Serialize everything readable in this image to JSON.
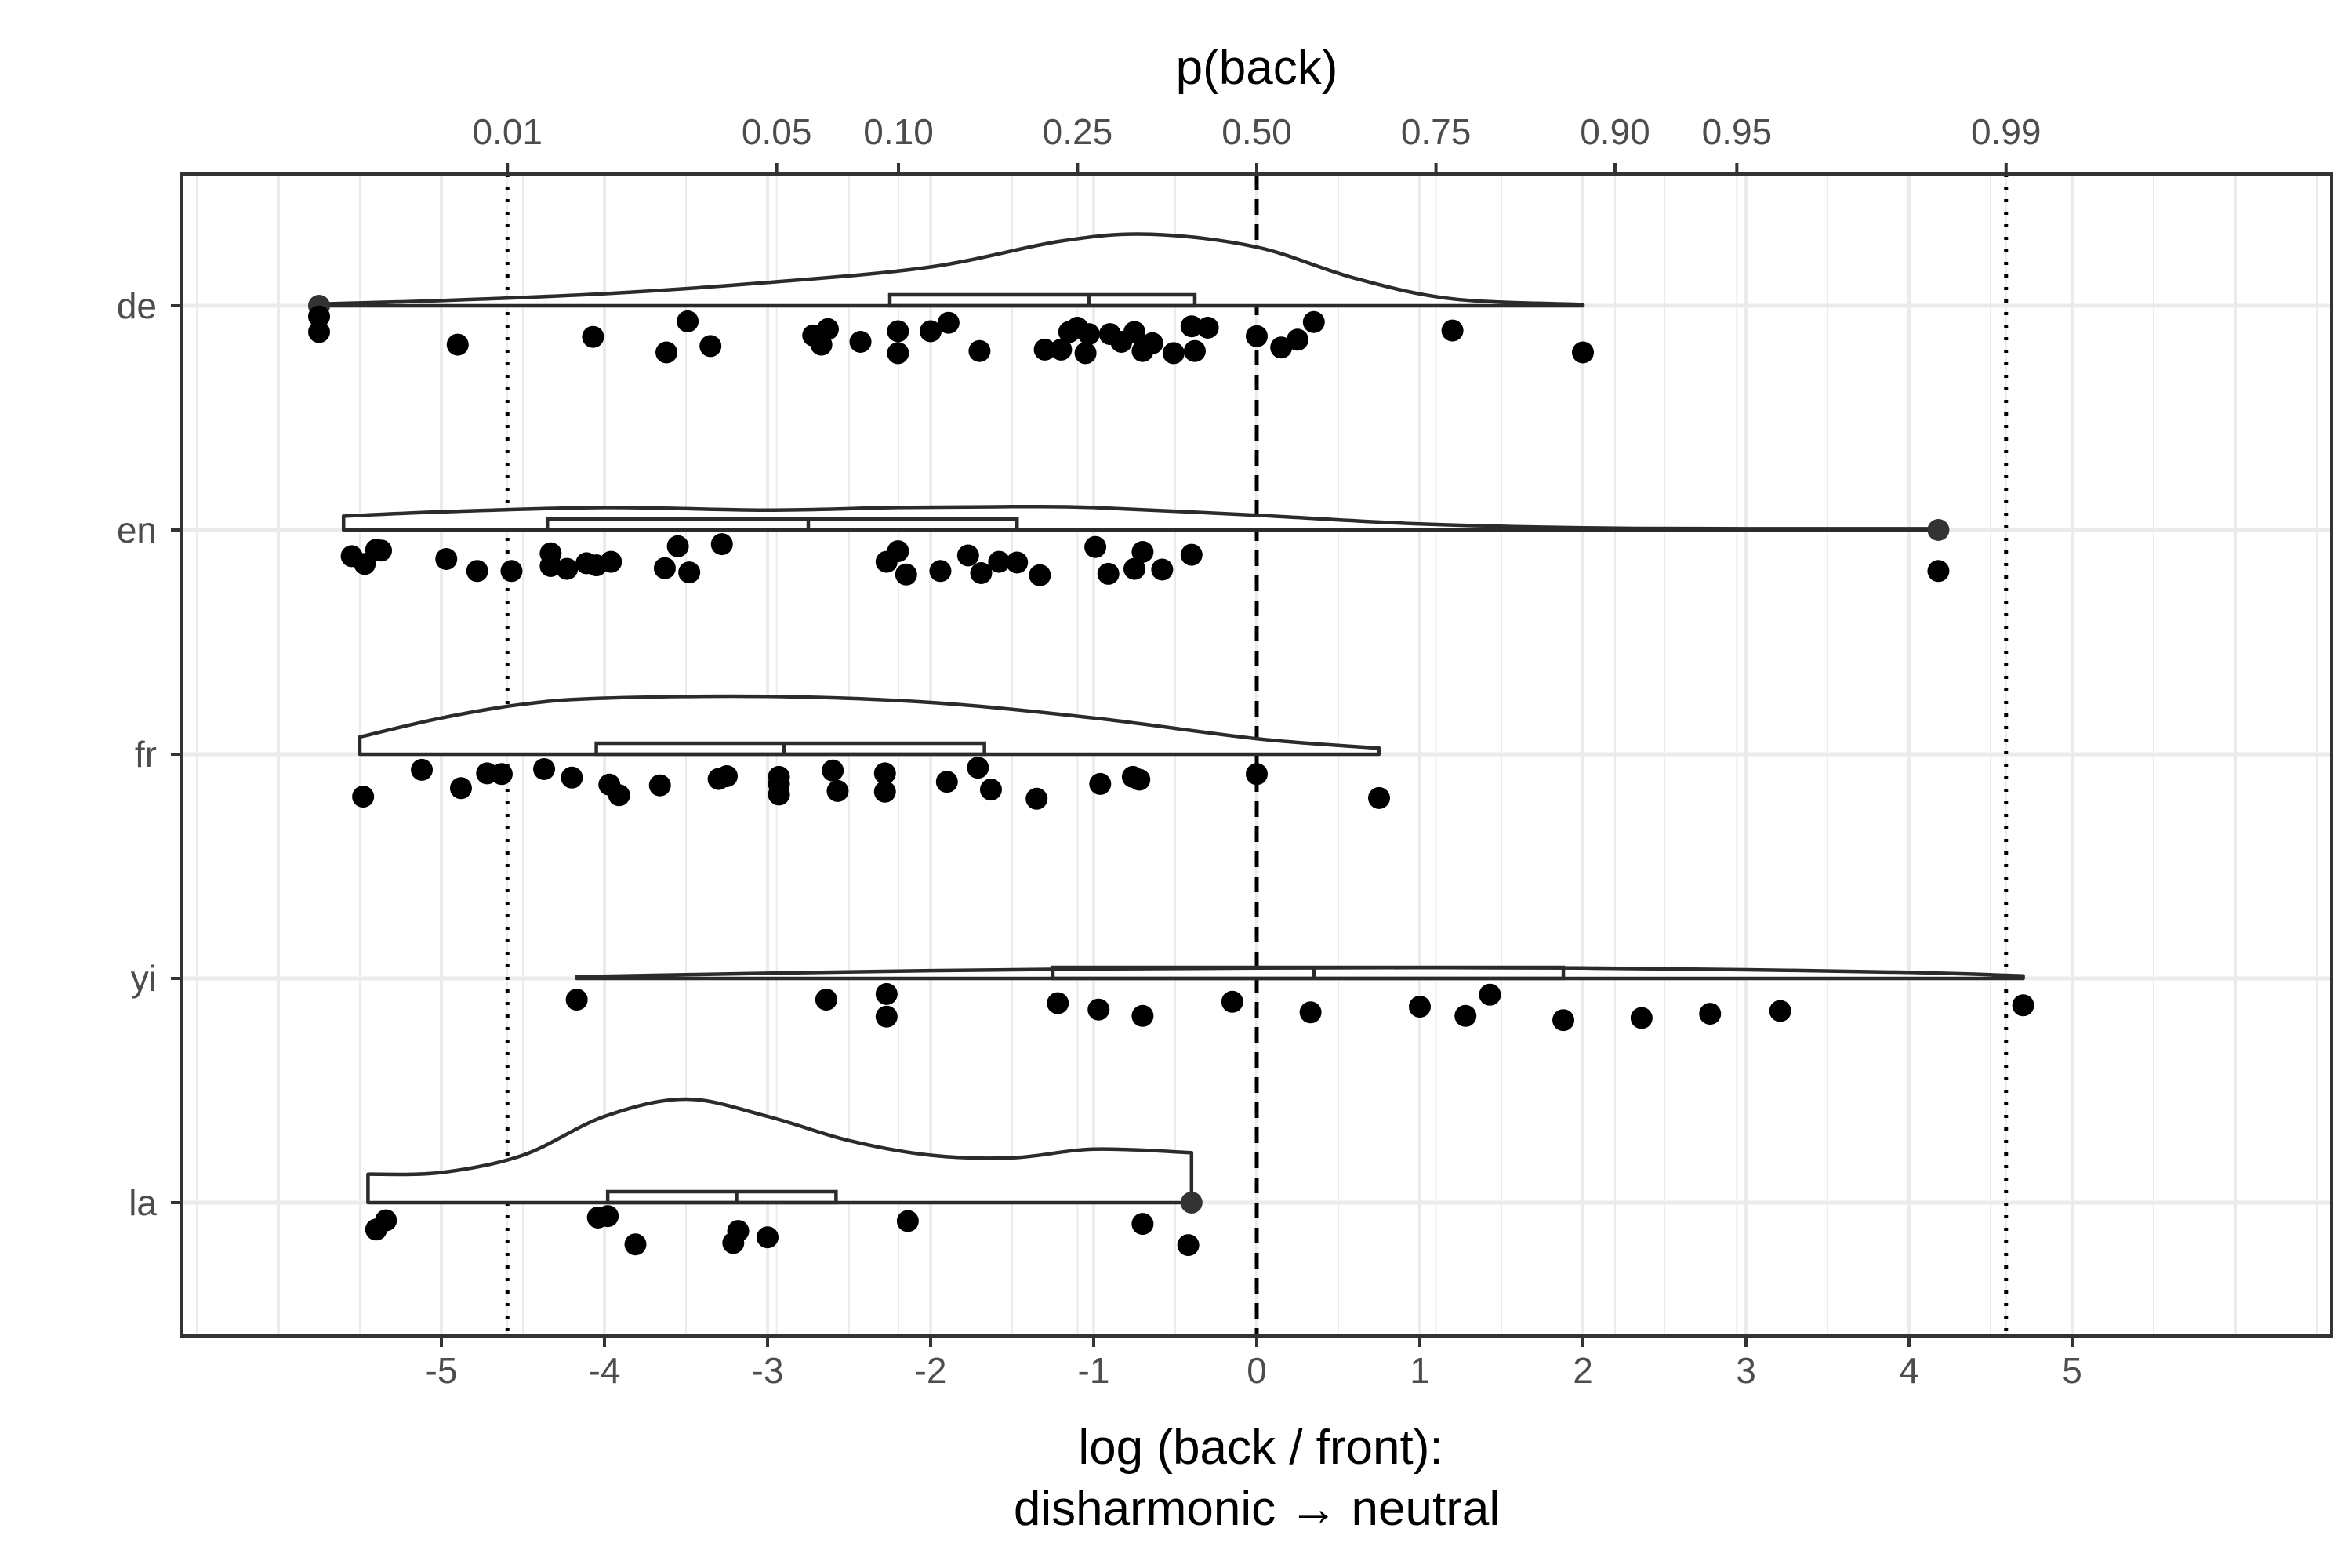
{
  "chart_data": {
    "type": "raincloud",
    "xlabel_line1": "log (back / front):",
    "xlabel_line2": "disharmonic → neutral",
    "top_axis_title": "p(back)",
    "xlim": [
      -6.6,
      6.6
    ],
    "x_ticks": [
      {
        "value": -5,
        "label": "-5"
      },
      {
        "value": -4,
        "label": "-4"
      },
      {
        "value": -3,
        "label": "-3"
      },
      {
        "value": -2,
        "label": "-2"
      },
      {
        "value": -1,
        "label": "-1"
      },
      {
        "value": 0,
        "label": "0"
      },
      {
        "value": 1,
        "label": "1"
      },
      {
        "value": 2,
        "label": "2"
      },
      {
        "value": 3,
        "label": "3"
      },
      {
        "value": 4,
        "label": "4"
      },
      {
        "value": 5,
        "label": "5"
      }
    ],
    "top_ticks": [
      {
        "value": -4.595,
        "label": "0.01"
      },
      {
        "value": -2.944,
        "label": "0.05"
      },
      {
        "value": -2.197,
        "label": "0.10"
      },
      {
        "value": -1.099,
        "label": "0.25"
      },
      {
        "value": 0,
        "label": "0.50"
      },
      {
        "value": 1.099,
        "label": "0.75"
      },
      {
        "value": 2.197,
        "label": "0.90"
      },
      {
        "value": 2.944,
        "label": "0.95"
      },
      {
        "value": 4.595,
        "label": "0.99"
      }
    ],
    "reference_lines": [
      {
        "value": -4.595,
        "style": "dotted"
      },
      {
        "value": 0,
        "style": "dashed"
      },
      {
        "value": 4.595,
        "style": "dotted"
      }
    ],
    "grid": true,
    "groups": [
      {
        "name": "de",
        "box": {
          "q1": -2.25,
          "median": -1.03,
          "q3": -0.38
        },
        "outliers": [
          -5.75
        ],
        "density": [
          [
            -5.75,
            0.02
          ],
          [
            -5,
            0.06
          ],
          [
            -4,
            0.14
          ],
          [
            -3,
            0.27
          ],
          [
            -2,
            0.45
          ],
          [
            -1.2,
            0.75
          ],
          [
            -0.65,
            0.83
          ],
          [
            0,
            0.68
          ],
          [
            0.6,
            0.32
          ],
          [
            1.2,
            0.08
          ],
          [
            2,
            0.015
          ]
        ],
        "points": [
          [
            -5.75,
            0.04
          ],
          [
            -5.75,
            0.26
          ],
          [
            -4.9,
            0.44
          ],
          [
            -4.07,
            0.33
          ],
          [
            -3.62,
            0.55
          ],
          [
            -3.49,
            0.11
          ],
          [
            -3.35,
            0.46
          ],
          [
            -2.72,
            0.31
          ],
          [
            -2.67,
            0.44
          ],
          [
            -2.63,
            0.22
          ],
          [
            -2.43,
            0.4
          ],
          [
            -2.2,
            0.25
          ],
          [
            -2.2,
            0.56
          ],
          [
            -2.0,
            0.25
          ],
          [
            -1.89,
            0.13
          ],
          [
            -1.7,
            0.53
          ],
          [
            -1.3,
            0.51
          ],
          [
            -1.2,
            0.51
          ],
          [
            -1.15,
            0.26
          ],
          [
            -1.1,
            0.2
          ],
          [
            -1.05,
            0.56
          ],
          [
            -1.03,
            0.29
          ],
          [
            -0.9,
            0.29
          ],
          [
            -0.83,
            0.4
          ],
          [
            -0.75,
            0.26
          ],
          [
            -0.7,
            0.53
          ],
          [
            -0.64,
            0.42
          ],
          [
            -0.51,
            0.56
          ],
          [
            -0.4,
            0.18
          ],
          [
            -0.38,
            0.53
          ],
          [
            -0.3,
            0.2
          ],
          [
            0,
            0.32
          ],
          [
            0.15,
            0.48
          ],
          [
            0.25,
            0.37
          ],
          [
            0.35,
            0.12
          ],
          [
            1.2,
            0.24
          ],
          [
            2.0,
            0.55
          ]
        ]
      },
      {
        "name": "en",
        "box": {
          "q1": -4.35,
          "median": -2.75,
          "q3": -1.47
        },
        "outliers": [
          4.18
        ],
        "density": [
          [
            -5.6,
            0.16
          ],
          [
            -5,
            0.21
          ],
          [
            -4,
            0.26
          ],
          [
            -3,
            0.23
          ],
          [
            -2.2,
            0.26
          ],
          [
            -1.5,
            0.27
          ],
          [
            -1,
            0.26
          ],
          [
            0,
            0.17
          ],
          [
            1,
            0.07
          ],
          [
            2,
            0.025
          ],
          [
            3,
            0.015
          ],
          [
            4.18,
            0.015
          ]
        ],
        "points": [
          [
            -5.55,
            0.26
          ],
          [
            -5.47,
            0.37
          ],
          [
            -5.4,
            0.17
          ],
          [
            -5.37,
            0.18
          ],
          [
            -4.97,
            0.3
          ],
          [
            -4.78,
            0.47
          ],
          [
            -4.57,
            0.47
          ],
          [
            -4.33,
            0.4
          ],
          [
            -4.33,
            0.22
          ],
          [
            -4.23,
            0.44
          ],
          [
            -4.11,
            0.36
          ],
          [
            -4.05,
            0.39
          ],
          [
            -3.96,
            0.34
          ],
          [
            -3.63,
            0.43
          ],
          [
            -3.55,
            0.12
          ],
          [
            -3.48,
            0.49
          ],
          [
            -3.28,
            0.09
          ],
          [
            -2.27,
            0.34
          ],
          [
            -2.2,
            0.19
          ],
          [
            -2.15,
            0.52
          ],
          [
            -1.94,
            0.47
          ],
          [
            -1.77,
            0.25
          ],
          [
            -1.69,
            0.5
          ],
          [
            -1.58,
            0.34
          ],
          [
            -1.47,
            0.35
          ],
          [
            -1.33,
            0.53
          ],
          [
            -0.99,
            0.13
          ],
          [
            -0.91,
            0.51
          ],
          [
            -0.75,
            0.44
          ],
          [
            -0.7,
            0.2
          ],
          [
            -0.58,
            0.45
          ],
          [
            -0.4,
            0.24
          ],
          [
            4.18,
            0.47
          ]
        ]
      },
      {
        "name": "fr",
        "box": {
          "q1": -4.05,
          "median": -2.9,
          "q3": -1.67
        },
        "outliers": [],
        "density": [
          [
            -5.5,
            0.2
          ],
          [
            -5,
            0.42
          ],
          [
            -4.5,
            0.58
          ],
          [
            -4,
            0.65
          ],
          [
            -3,
            0.67
          ],
          [
            -2,
            0.6
          ],
          [
            -1,
            0.42
          ],
          [
            0,
            0.18
          ],
          [
            0.75,
            0.07
          ]
        ],
        "points": [
          [
            -5.48,
            0.49
          ],
          [
            -5.12,
            0.11
          ],
          [
            -4.88,
            0.37
          ],
          [
            -4.72,
            0.16
          ],
          [
            -4.63,
            0.17
          ],
          [
            -4.37,
            0.1
          ],
          [
            -4.2,
            0.22
          ],
          [
            -3.97,
            0.32
          ],
          [
            -3.91,
            0.47
          ],
          [
            -3.66,
            0.33
          ],
          [
            -3.3,
            0.24
          ],
          [
            -3.25,
            0.2
          ],
          [
            -2.93,
            0.21
          ],
          [
            -2.93,
            0.31
          ],
          [
            -2.93,
            0.46
          ],
          [
            -2.6,
            0.12
          ],
          [
            -2.57,
            0.41
          ],
          [
            -2.28,
            0.16
          ],
          [
            -2.28,
            0.42
          ],
          [
            -1.9,
            0.28
          ],
          [
            -1.71,
            0.08
          ],
          [
            -1.63,
            0.39
          ],
          [
            -1.35,
            0.52
          ],
          [
            -0.96,
            0.31
          ],
          [
            -0.76,
            0.21
          ],
          [
            -0.72,
            0.25
          ],
          [
            0,
            0.17
          ],
          [
            0.75,
            0.51
          ]
        ]
      },
      {
        "name": "yi",
        "box": {
          "q1": -1.25,
          "median": 0.35,
          "q3": 1.88
        },
        "outliers": [],
        "density": [
          [
            -4.17,
            0.02
          ],
          [
            -3,
            0.06
          ],
          [
            -2,
            0.09
          ],
          [
            -1,
            0.11
          ],
          [
            0,
            0.12
          ],
          [
            1,
            0.125
          ],
          [
            2,
            0.12
          ],
          [
            3,
            0.1
          ],
          [
            4,
            0.07
          ],
          [
            4.7,
            0.03
          ]
        ],
        "points": [
          [
            -4.17,
            0.19
          ],
          [
            -2.64,
            0.19
          ],
          [
            -2.27,
            0.11
          ],
          [
            -2.27,
            0.43
          ],
          [
            -1.22,
            0.24
          ],
          [
            -0.97,
            0.33
          ],
          [
            -0.7,
            0.42
          ],
          [
            -0.15,
            0.22
          ],
          [
            0.33,
            0.37
          ],
          [
            1.0,
            0.29
          ],
          [
            1.28,
            0.42
          ],
          [
            1.43,
            0.12
          ],
          [
            1.88,
            0.48
          ],
          [
            2.36,
            0.45
          ],
          [
            2.78,
            0.39
          ],
          [
            3.21,
            0.35
          ],
          [
            4.7,
            0.27
          ]
        ]
      },
      {
        "name": "la",
        "box": {
          "q1": -3.98,
          "median": -3.19,
          "q3": -2.58
        },
        "outliers": [
          -0.4
        ],
        "density": [
          [
            -5.45,
            0.33
          ],
          [
            -5,
            0.35
          ],
          [
            -4.5,
            0.55
          ],
          [
            -4,
            1.0
          ],
          [
            -3.5,
            1.2
          ],
          [
            -3,
            1.0
          ],
          [
            -2.5,
            0.72
          ],
          [
            -2,
            0.55
          ],
          [
            -1.5,
            0.52
          ],
          [
            -1,
            0.62
          ],
          [
            -0.4,
            0.58
          ]
        ],
        "points": [
          [
            -5.4,
            0.27
          ],
          [
            -5.34,
            0.14
          ],
          [
            -4.04,
            0.1
          ],
          [
            -3.98,
            0.08
          ],
          [
            -3.81,
            0.48
          ],
          [
            -3.21,
            0.46
          ],
          [
            -3.18,
            0.29
          ],
          [
            -3.0,
            0.38
          ],
          [
            -2.14,
            0.15
          ],
          [
            -0.7,
            0.19
          ],
          [
            -0.42,
            0.49
          ]
        ]
      }
    ]
  }
}
